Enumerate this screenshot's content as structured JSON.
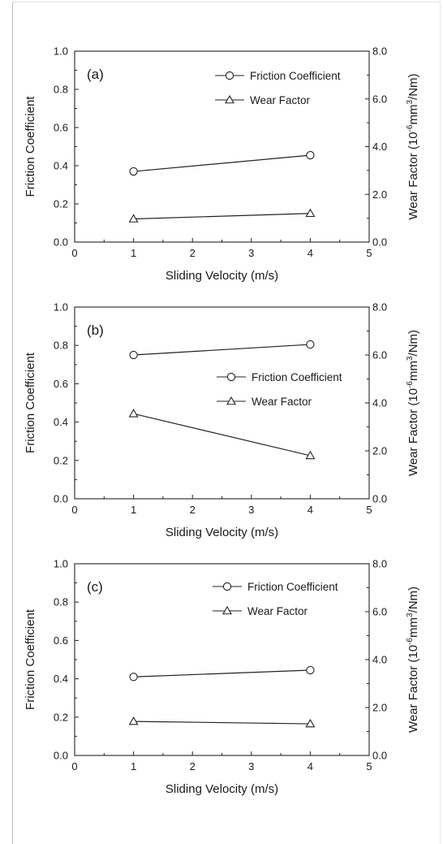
{
  "chart_data": [
    {
      "type": "line",
      "panel_label": "(a)",
      "x": [
        1,
        4
      ],
      "xlabel": "Sliding Velocity (m/s)",
      "xlim": [
        0,
        5
      ],
      "xticks": [
        "0",
        "1",
        "2",
        "3",
        "4",
        "5"
      ],
      "ylabel": "Friction Coefficient",
      "ylim": [
        0,
        1.0
      ],
      "yticks": [
        "0.0",
        "0.2",
        "0.4",
        "0.6",
        "0.8",
        "1.0"
      ],
      "y2label_parts": [
        "Wear Factor (10",
        "-6",
        "mm",
        "3",
        "/Nm)"
      ],
      "y2lim": [
        0,
        8.0
      ],
      "y2ticks": [
        "0.0",
        "2.0",
        "4.0",
        "6.0",
        "8.0"
      ],
      "legend_position": "top-right",
      "series": [
        {
          "name": "Friction Coefficient",
          "marker": "circle",
          "axis": "left",
          "values": [
            0.37,
            0.455
          ]
        },
        {
          "name": "Wear Factor",
          "marker": "triangle",
          "axis": "right",
          "values": [
            0.97,
            1.2
          ]
        }
      ]
    },
    {
      "type": "line",
      "panel_label": "(b)",
      "x": [
        1,
        4
      ],
      "xlabel": "Sliding Velocity (m/s)",
      "xlim": [
        0,
        5
      ],
      "xticks": [
        "0",
        "1",
        "2",
        "3",
        "4",
        "5"
      ],
      "ylabel": "Friction Coefficient",
      "ylim": [
        0,
        1.0
      ],
      "yticks": [
        "0.0",
        "0.2",
        "0.4",
        "0.6",
        "0.8",
        "1.0"
      ],
      "y2label_parts": [
        "Wear Factor (10",
        "-6",
        "mm",
        "3",
        "/Nm)"
      ],
      "y2lim": [
        0,
        8.0
      ],
      "y2ticks": [
        "0.0",
        "2.0",
        "4.0",
        "6.0",
        "8.0"
      ],
      "legend_position": "center-right",
      "series": [
        {
          "name": "Friction Coefficient",
          "marker": "circle",
          "axis": "left",
          "values": [
            0.75,
            0.805
          ]
        },
        {
          "name": "Wear Factor",
          "marker": "triangle",
          "axis": "right",
          "values": [
            3.55,
            1.8
          ]
        }
      ]
    },
    {
      "type": "line",
      "panel_label": "(c)",
      "x": [
        1,
        4
      ],
      "xlabel": "Sliding Velocity (m/s)",
      "xlim": [
        0,
        5
      ],
      "xticks": [
        "0",
        "1",
        "2",
        "3",
        "4",
        "5"
      ],
      "ylabel": "Friction Coefficient",
      "ylim": [
        0,
        1.0
      ],
      "yticks": [
        "0.0",
        "0.2",
        "0.4",
        "0.6",
        "0.8",
        "1.0"
      ],
      "y2label_parts": [
        "Wear Factor (10",
        "-6",
        "mm",
        "3",
        "/Nm)"
      ],
      "y2lim": [
        0,
        8.0
      ],
      "y2ticks": [
        "0.0",
        "2.0",
        "4.0",
        "6.0",
        "8.0"
      ],
      "legend_position": "top-right",
      "series": [
        {
          "name": "Friction Coefficient",
          "marker": "circle",
          "axis": "left",
          "values": [
            0.41,
            0.445
          ]
        },
        {
          "name": "Wear Factor",
          "marker": "triangle",
          "axis": "right",
          "values": [
            1.42,
            1.32
          ]
        }
      ]
    }
  ]
}
